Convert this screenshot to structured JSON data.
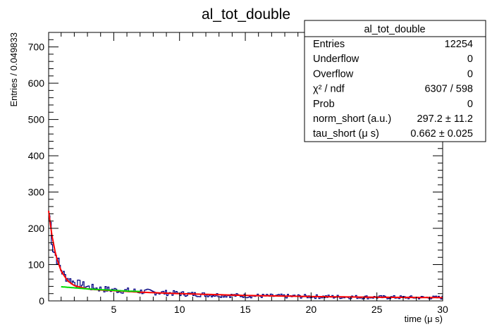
{
  "chart_data": {
    "type": "histogram",
    "title": "al_tot_double",
    "xlabel": "time (μ s)",
    "ylabel": "Entries / 0.049833",
    "xlim": [
      0.05,
      30
    ],
    "ylim": [
      0,
      740
    ],
    "xticks": [
      5,
      10,
      15,
      20,
      25,
      30
    ],
    "yticks": [
      0,
      100,
      200,
      300,
      400,
      500,
      600,
      700
    ],
    "bin_width": 0.049833,
    "histogram": {
      "color": "#000080",
      "x": [
        0.1,
        0.3,
        0.5,
        0.7,
        0.9,
        1.2,
        1.5,
        2.0,
        2.5,
        3.0,
        4.0,
        5.0,
        6.0,
        8.0,
        10.0,
        12.0,
        15.0,
        20.0,
        25.0,
        30.0
      ],
      "y": [
        235,
        150,
        130,
        110,
        90,
        70,
        60,
        50,
        45,
        38,
        33,
        30,
        28,
        24,
        20,
        17,
        14,
        12,
        10,
        9
      ]
    },
    "fit_curves": [
      {
        "color": "#ff0000",
        "x": [
          0.05,
          0.3,
          0.6,
          1.0,
          1.5,
          2.0,
          3.0,
          4.0,
          5.0,
          7.0,
          10.0,
          15.0,
          20.0,
          25.0,
          30.0
        ],
        "y": [
          248,
          180,
          125,
          82,
          55,
          42,
          33,
          30,
          28,
          24,
          20,
          15,
          12,
          10,
          9
        ]
      },
      {
        "color": "#00dd00",
        "x": [
          1.0,
          2.0,
          3.0,
          4.0,
          5.0,
          6.0,
          7.0
        ],
        "y": [
          39,
          36,
          33,
          31,
          29,
          27,
          26
        ]
      }
    ],
    "stats_box": {
      "title": "al_tot_double",
      "rows": [
        {
          "label": "Entries",
          "value": "12254"
        },
        {
          "label": "Underflow",
          "value": "0"
        },
        {
          "label": "Overflow",
          "value": "0"
        },
        {
          "label": "χ² / ndf",
          "value": "6307 / 598"
        },
        {
          "label": "Prob",
          "value": "0"
        },
        {
          "label": "norm_short (a.u.)",
          "value": "297.2 ± 11.2"
        },
        {
          "label": "tau_short (μ s)",
          "value": "0.662 ± 0.025"
        }
      ]
    }
  }
}
